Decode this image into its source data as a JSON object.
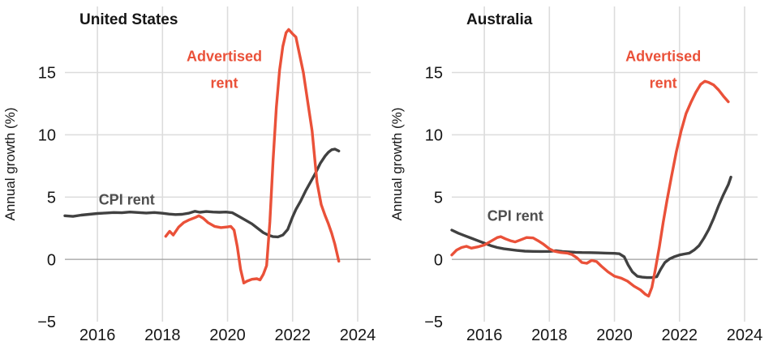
{
  "page": {
    "background": "#ffffff"
  },
  "colors": {
    "advertised": "#ea5139",
    "cpi": "#414141",
    "cpi_label": "#4f4f4f",
    "grid": "#dcdcdc",
    "zero_line": "#9d9d9d",
    "text": "#161616"
  },
  "chart_data": [
    {
      "type": "line",
      "title": "United States",
      "ylabel": "Annual growth (%)",
      "xlim": [
        2015,
        2024.4
      ],
      "ylim": [
        -5,
        20.3
      ],
      "grid": true,
      "x_ticks": [
        {
          "value": 2016,
          "label": "2016"
        },
        {
          "value": 2018,
          "label": "2018"
        },
        {
          "value": 2020,
          "label": "2020"
        },
        {
          "value": 2022,
          "label": "2022"
        },
        {
          "value": 2024,
          "label": "2024"
        }
      ],
      "y_ticks": [
        {
          "value": 15,
          "label": "15"
        },
        {
          "value": 10,
          "label": "10"
        },
        {
          "value": 5,
          "label": "5"
        },
        {
          "value": 0,
          "label": "0"
        },
        {
          "value": -5,
          "label": "−5"
        }
      ],
      "series": [
        {
          "name": "CPI rent",
          "color": "cpi",
          "points": [
            [
              2015.0,
              3.5
            ],
            [
              2015.25,
              3.45
            ],
            [
              2015.5,
              3.55
            ],
            [
              2015.75,
              3.62
            ],
            [
              2016.0,
              3.68
            ],
            [
              2016.25,
              3.72
            ],
            [
              2016.5,
              3.76
            ],
            [
              2016.75,
              3.74
            ],
            [
              2017.0,
              3.8
            ],
            [
              2017.25,
              3.76
            ],
            [
              2017.5,
              3.72
            ],
            [
              2017.75,
              3.76
            ],
            [
              2018.0,
              3.7
            ],
            [
              2018.2,
              3.64
            ],
            [
              2018.4,
              3.6
            ],
            [
              2018.6,
              3.62
            ],
            [
              2018.8,
              3.7
            ],
            [
              2019.0,
              3.86
            ],
            [
              2019.15,
              3.78
            ],
            [
              2019.35,
              3.84
            ],
            [
              2019.55,
              3.8
            ],
            [
              2019.75,
              3.78
            ],
            [
              2019.95,
              3.8
            ],
            [
              2020.15,
              3.74
            ],
            [
              2020.35,
              3.45
            ],
            [
              2020.55,
              3.15
            ],
            [
              2020.75,
              2.85
            ],
            [
              2020.95,
              2.45
            ],
            [
              2021.1,
              2.15
            ],
            [
              2021.25,
              1.95
            ],
            [
              2021.4,
              1.82
            ],
            [
              2021.55,
              1.8
            ],
            [
              2021.7,
              1.95
            ],
            [
              2021.85,
              2.4
            ],
            [
              2022.0,
              3.4
            ],
            [
              2022.1,
              4.0
            ],
            [
              2022.25,
              4.7
            ],
            [
              2022.4,
              5.5
            ],
            [
              2022.55,
              6.2
            ],
            [
              2022.7,
              6.9
            ],
            [
              2022.85,
              7.7
            ],
            [
              2023.0,
              8.3
            ],
            [
              2023.1,
              8.6
            ],
            [
              2023.2,
              8.8
            ],
            [
              2023.3,
              8.85
            ],
            [
              2023.42,
              8.7
            ]
          ]
        },
        {
          "name": "Advertised rent",
          "color": "advertised",
          "points": [
            [
              2018.1,
              1.85
            ],
            [
              2018.22,
              2.25
            ],
            [
              2018.33,
              1.95
            ],
            [
              2018.5,
              2.6
            ],
            [
              2018.65,
              2.95
            ],
            [
              2018.8,
              3.15
            ],
            [
              2019.0,
              3.35
            ],
            [
              2019.12,
              3.5
            ],
            [
              2019.25,
              3.3
            ],
            [
              2019.4,
              2.95
            ],
            [
              2019.6,
              2.65
            ],
            [
              2019.8,
              2.55
            ],
            [
              2020.0,
              2.6
            ],
            [
              2020.1,
              2.65
            ],
            [
              2020.2,
              2.35
            ],
            [
              2020.3,
              1.0
            ],
            [
              2020.4,
              -0.8
            ],
            [
              2020.5,
              -1.9
            ],
            [
              2020.6,
              -1.75
            ],
            [
              2020.75,
              -1.6
            ],
            [
              2020.9,
              -1.55
            ],
            [
              2021.0,
              -1.65
            ],
            [
              2021.1,
              -1.2
            ],
            [
              2021.2,
              -0.5
            ],
            [
              2021.3,
              3.0
            ],
            [
              2021.4,
              8.0
            ],
            [
              2021.5,
              12.2
            ],
            [
              2021.6,
              15.2
            ],
            [
              2021.7,
              17.1
            ],
            [
              2021.8,
              18.2
            ],
            [
              2021.88,
              18.45
            ],
            [
              2022.0,
              18.1
            ],
            [
              2022.1,
              17.85
            ],
            [
              2022.2,
              16.6
            ],
            [
              2022.33,
              15.0
            ],
            [
              2022.45,
              12.9
            ],
            [
              2022.6,
              10.3
            ],
            [
              2022.75,
              6.2
            ],
            [
              2022.88,
              4.4
            ],
            [
              2023.0,
              3.5
            ],
            [
              2023.1,
              2.85
            ],
            [
              2023.2,
              2.1
            ],
            [
              2023.3,
              1.2
            ],
            [
              2023.42,
              -0.15
            ]
          ]
        }
      ],
      "annotations": [
        {
          "lines": [
            "Advertised",
            "rent"
          ],
          "x": 2019.9,
          "y": 16.3,
          "color": "advertised"
        },
        {
          "lines": [
            "CPI rent"
          ],
          "x": 2016.9,
          "y": 4.8,
          "color": "cpi_label"
        }
      ]
    },
    {
      "type": "line",
      "title": "Australia",
      "ylabel": "Annual growth (%)",
      "xlim": [
        2015,
        2024.4
      ],
      "ylim": [
        -5,
        20.3
      ],
      "grid": true,
      "x_ticks": [
        {
          "value": 2016,
          "label": "2016"
        },
        {
          "value": 2018,
          "label": "2018"
        },
        {
          "value": 2020,
          "label": "2020"
        },
        {
          "value": 2022,
          "label": "2022"
        },
        {
          "value": 2024,
          "label": "2024"
        }
      ],
      "y_ticks": [
        {
          "value": 15,
          "label": "15"
        },
        {
          "value": 10,
          "label": "10"
        },
        {
          "value": 5,
          "label": "5"
        },
        {
          "value": 0,
          "label": "0"
        },
        {
          "value": -5,
          "label": "−5"
        }
      ],
      "series": [
        {
          "name": "CPI rent",
          "color": "cpi",
          "points": [
            [
              2015.0,
              2.35
            ],
            [
              2015.2,
              2.1
            ],
            [
              2015.4,
              1.9
            ],
            [
              2015.6,
              1.7
            ],
            [
              2015.8,
              1.5
            ],
            [
              2016.0,
              1.3
            ],
            [
              2016.2,
              1.1
            ],
            [
              2016.4,
              0.95
            ],
            [
              2016.6,
              0.85
            ],
            [
              2016.8,
              0.78
            ],
            [
              2017.0,
              0.72
            ],
            [
              2017.25,
              0.66
            ],
            [
              2017.5,
              0.64
            ],
            [
              2017.75,
              0.63
            ],
            [
              2018.0,
              0.64
            ],
            [
              2018.2,
              0.69
            ],
            [
              2018.4,
              0.63
            ],
            [
              2018.6,
              0.6
            ],
            [
              2018.8,
              0.57
            ],
            [
              2019.0,
              0.55
            ],
            [
              2019.25,
              0.54
            ],
            [
              2019.5,
              0.52
            ],
            [
              2019.75,
              0.5
            ],
            [
              2020.0,
              0.48
            ],
            [
              2020.15,
              0.45
            ],
            [
              2020.3,
              0.2
            ],
            [
              2020.42,
              -0.45
            ],
            [
              2020.55,
              -1.0
            ],
            [
              2020.7,
              -1.35
            ],
            [
              2020.85,
              -1.43
            ],
            [
              2021.0,
              -1.46
            ],
            [
              2021.15,
              -1.46
            ],
            [
              2021.3,
              -1.4
            ],
            [
              2021.42,
              -0.8
            ],
            [
              2021.55,
              -0.25
            ],
            [
              2021.7,
              0.05
            ],
            [
              2021.85,
              0.22
            ],
            [
              2022.0,
              0.35
            ],
            [
              2022.15,
              0.43
            ],
            [
              2022.3,
              0.5
            ],
            [
              2022.45,
              0.75
            ],
            [
              2022.6,
              1.1
            ],
            [
              2022.75,
              1.7
            ],
            [
              2022.9,
              2.4
            ],
            [
              2023.05,
              3.3
            ],
            [
              2023.2,
              4.3
            ],
            [
              2023.35,
              5.2
            ],
            [
              2023.5,
              6.0
            ],
            [
              2023.58,
              6.6
            ]
          ]
        },
        {
          "name": "Advertised rent",
          "color": "advertised",
          "points": [
            [
              2015.0,
              0.35
            ],
            [
              2015.15,
              0.75
            ],
            [
              2015.3,
              0.95
            ],
            [
              2015.45,
              1.05
            ],
            [
              2015.6,
              0.9
            ],
            [
              2015.8,
              1.0
            ],
            [
              2016.0,
              1.15
            ],
            [
              2016.2,
              1.45
            ],
            [
              2016.4,
              1.75
            ],
            [
              2016.5,
              1.82
            ],
            [
              2016.65,
              1.65
            ],
            [
              2016.8,
              1.5
            ],
            [
              2016.95,
              1.4
            ],
            [
              2017.1,
              1.55
            ],
            [
              2017.3,
              1.75
            ],
            [
              2017.5,
              1.72
            ],
            [
              2017.65,
              1.5
            ],
            [
              2017.8,
              1.25
            ],
            [
              2018.0,
              0.85
            ],
            [
              2018.15,
              0.65
            ],
            [
              2018.35,
              0.55
            ],
            [
              2018.55,
              0.5
            ],
            [
              2018.7,
              0.38
            ],
            [
              2018.85,
              0.12
            ],
            [
              2019.0,
              -0.25
            ],
            [
              2019.15,
              -0.32
            ],
            [
              2019.3,
              -0.08
            ],
            [
              2019.45,
              -0.18
            ],
            [
              2019.6,
              -0.55
            ],
            [
              2019.8,
              -1.0
            ],
            [
              2020.0,
              -1.35
            ],
            [
              2020.2,
              -1.5
            ],
            [
              2020.4,
              -1.75
            ],
            [
              2020.6,
              -2.15
            ],
            [
              2020.8,
              -2.45
            ],
            [
              2020.95,
              -2.8
            ],
            [
              2021.05,
              -2.95
            ],
            [
              2021.15,
              -2.25
            ],
            [
              2021.25,
              -0.9
            ],
            [
              2021.38,
              1.0
            ],
            [
              2021.5,
              3.0
            ],
            [
              2021.62,
              4.8
            ],
            [
              2021.75,
              6.6
            ],
            [
              2021.9,
              8.6
            ],
            [
              2022.05,
              10.3
            ],
            [
              2022.2,
              11.7
            ],
            [
              2022.35,
              12.6
            ],
            [
              2022.5,
              13.4
            ],
            [
              2022.65,
              14.05
            ],
            [
              2022.78,
              14.3
            ],
            [
              2022.9,
              14.2
            ],
            [
              2023.05,
              14.0
            ],
            [
              2023.2,
              13.6
            ],
            [
              2023.35,
              13.1
            ],
            [
              2023.5,
              12.65
            ]
          ]
        }
      ],
      "annotations": [
        {
          "lines": [
            "Advertised",
            "rent"
          ],
          "x": 2021.5,
          "y": 16.3,
          "color": "advertised"
        },
        {
          "lines": [
            "CPI rent"
          ],
          "x": 2016.95,
          "y": 3.5,
          "color": "cpi_label"
        }
      ]
    }
  ]
}
